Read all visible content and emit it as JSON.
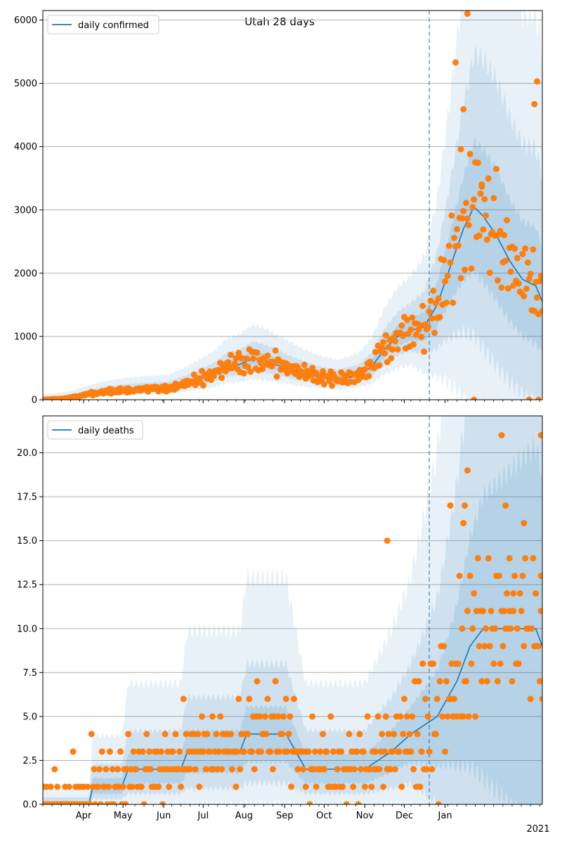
{
  "colors": {
    "model_line": "#1f77b4",
    "observed": "#ff7f0e",
    "band": "#1f77b4",
    "grid": "#b0b0b0",
    "vline": "#1f77b4"
  },
  "chart_data": [
    {
      "type": "line",
      "title": "Utah 28 days",
      "legend": "daily confirmed",
      "legend_position": "top-left",
      "ylim": [
        0,
        6150
      ],
      "yticks": [
        0,
        1000,
        2000,
        3000,
        4000,
        5000,
        6000
      ],
      "ytick_labels": [
        "0",
        "1000",
        "2000",
        "3000",
        "4000",
        "5000",
        "6000"
      ],
      "forecast_start_day": 279,
      "median_anchors": [
        [
          0,
          0
        ],
        [
          15,
          15
        ],
        [
          25,
          45
        ],
        [
          35,
          85
        ],
        [
          50,
          130
        ],
        [
          70,
          160
        ],
        [
          80,
          170
        ],
        [
          95,
          180
        ],
        [
          110,
          260
        ],
        [
          120,
          330
        ],
        [
          130,
          400
        ],
        [
          140,
          520
        ],
        [
          150,
          560
        ],
        [
          160,
          650
        ],
        [
          168,
          620
        ],
        [
          180,
          540
        ],
        [
          195,
          440
        ],
        [
          210,
          360
        ],
        [
          225,
          320
        ],
        [
          240,
          380
        ],
        [
          250,
          520
        ],
        [
          260,
          800
        ],
        [
          270,
          1000
        ],
        [
          280,
          1100
        ],
        [
          290,
          1150
        ],
        [
          300,
          1500
        ],
        [
          310,
          2100
        ],
        [
          320,
          2700
        ],
        [
          328,
          3050
        ],
        [
          335,
          2900
        ],
        [
          345,
          2600
        ],
        [
          355,
          2200
        ],
        [
          365,
          1900
        ],
        [
          375,
          1800
        ],
        [
          380,
          1550
        ]
      ],
      "observed_pattern": [
        0.0,
        0.2,
        -0.15,
        0.35,
        -0.3,
        0.1,
        -0.05,
        0.25,
        -0.2,
        0.45,
        -0.35,
        0.15,
        0.05,
        -0.25
      ],
      "observed_noise": 0.28,
      "observed_extra": [
        [
          323,
          6100
        ],
        [
          314,
          5330
        ],
        [
          320,
          4590
        ],
        [
          376,
          5030
        ],
        [
          374,
          4670
        ],
        [
          318,
          3960
        ],
        [
          334,
          3400
        ],
        [
          377,
          0
        ],
        [
          370,
          0
        ],
        [
          328,
          0
        ]
      ],
      "band_factors": [
        [
          0.5,
          1.7
        ],
        [
          0.7,
          1.35
        ],
        [
          0.85,
          1.15
        ]
      ],
      "band_growth": 0.025
    },
    {
      "type": "line",
      "title": "",
      "legend": "daily deaths",
      "legend_position": "top-left",
      "ylim": [
        0,
        22.1
      ],
      "yticks": [
        0,
        2.5,
        5,
        7.5,
        10,
        12.5,
        15,
        17.5,
        20
      ],
      "ytick_labels": [
        "0.0",
        "2.5",
        "5.0",
        "7.5",
        "10.0",
        "12.5",
        "15.0",
        "17.5",
        "20.0"
      ],
      "forecast_start_day": 279,
      "median_anchors": [
        [
          0,
          0
        ],
        [
          35,
          0
        ],
        [
          38,
          1
        ],
        [
          60,
          1
        ],
        [
          65,
          2
        ],
        [
          105,
          2
        ],
        [
          110,
          3
        ],
        [
          150,
          3
        ],
        [
          155,
          4
        ],
        [
          185,
          4
        ],
        [
          200,
          2
        ],
        [
          240,
          2
        ],
        [
          245,
          2
        ],
        [
          265,
          3
        ],
        [
          280,
          4
        ],
        [
          300,
          5
        ],
        [
          315,
          7
        ],
        [
          325,
          9
        ],
        [
          335,
          10
        ],
        [
          360,
          10
        ],
        [
          375,
          10
        ],
        [
          380,
          9
        ]
      ],
      "observed_pattern": [
        0,
        1,
        -1,
        2,
        -1,
        0,
        1,
        -2,
        0,
        3,
        -1,
        1,
        -1,
        0
      ],
      "observed_noise": 0,
      "observed_extra": [
        [
          262,
          15
        ],
        [
          310,
          17
        ],
        [
          323,
          19
        ],
        [
          323,
          11
        ],
        [
          349,
          21
        ],
        [
          379,
          21
        ],
        [
          352,
          17
        ],
        [
          366,
          16
        ],
        [
          379,
          13
        ],
        [
          358,
          12
        ],
        [
          355,
          14
        ],
        [
          320,
          16
        ],
        [
          321,
          17
        ]
      ],
      "band_factors": [
        [
          0,
          3
        ],
        [
          0.3,
          1.9
        ],
        [
          0.6,
          1.35
        ]
      ],
      "band_growth": 0.02
    }
  ],
  "x_axis": {
    "domain_days": [
      0,
      380
    ],
    "ticks": [
      {
        "day": 31,
        "label": "Apr"
      },
      {
        "day": 61,
        "label": "May"
      },
      {
        "day": 92,
        "label": "Jun"
      },
      {
        "day": 122,
        "label": "Jul"
      },
      {
        "day": 153,
        "label": "Aug"
      },
      {
        "day": 184,
        "label": "Sep"
      },
      {
        "day": 214,
        "label": "Oct"
      },
      {
        "day": 245,
        "label": "Nov"
      },
      {
        "day": 275,
        "label": "Dec"
      },
      {
        "day": 306,
        "label": "Jan"
      }
    ],
    "ticks_offset_note": "days since 1 Mar 2020",
    "year_label": "2021"
  }
}
